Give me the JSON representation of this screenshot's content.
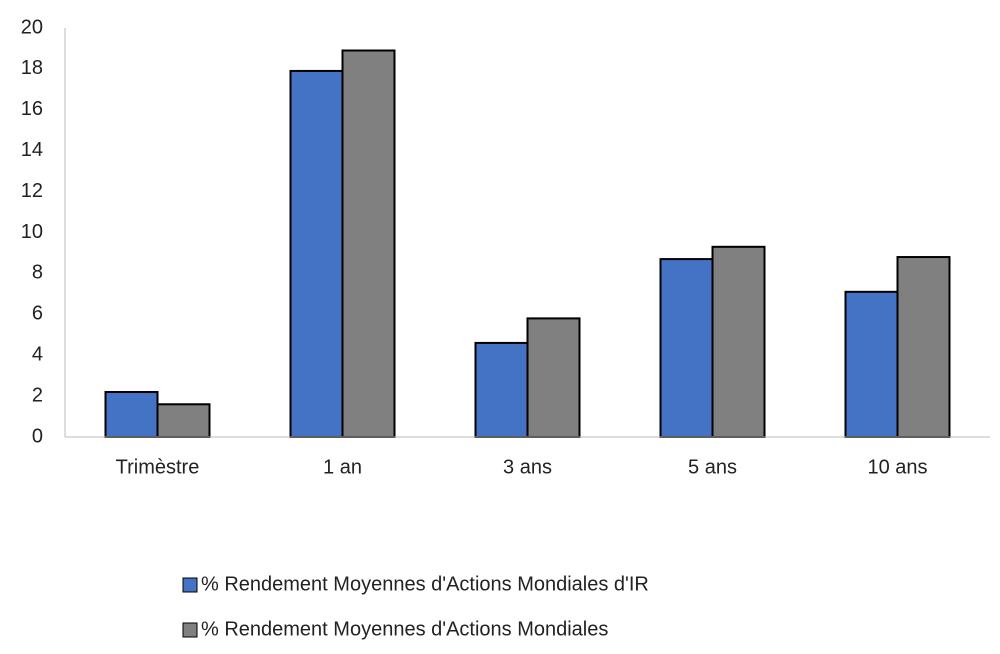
{
  "chart_data": {
    "type": "bar",
    "categories": [
      "Trimèstre",
      "1 an",
      "3 ans",
      "5 ans",
      "10 ans"
    ],
    "series": [
      {
        "name": "% Rendement Moyennes d'Actions Mondiales d'IR",
        "color": "#4472c4",
        "values": [
          2.2,
          17.9,
          4.6,
          8.7,
          7.1
        ]
      },
      {
        "name": "% Rendement Moyennes d'Actions Mondiales",
        "color": "#808080",
        "values": [
          1.6,
          18.9,
          5.8,
          9.3,
          8.8
        ]
      }
    ],
    "ylim": [
      0,
      20
    ],
    "yticks": [
      0,
      2,
      4,
      6,
      8,
      10,
      12,
      14,
      16,
      18,
      20
    ],
    "grid": false,
    "legend": "bottom"
  }
}
